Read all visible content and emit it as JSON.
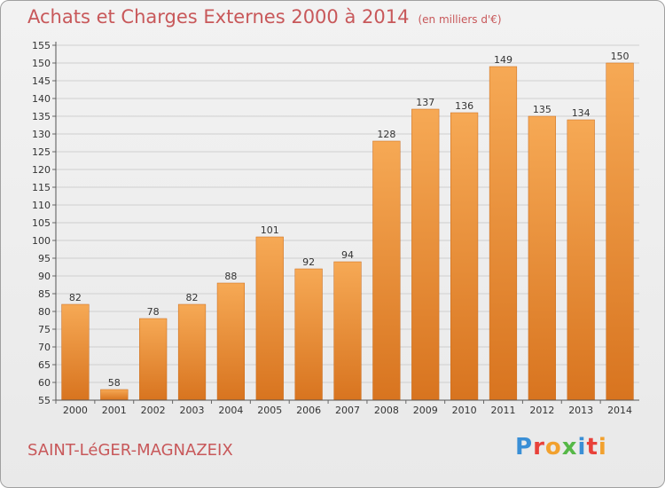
{
  "title": "Achats et Charges Externes 2000 à 2014",
  "subtitle": "(en milliers d'€)",
  "town": "SAINT-LéGER-MAGNAZEIX",
  "logo": {
    "letters": [
      "P",
      "r",
      "o",
      "x",
      "i",
      "t",
      "i"
    ],
    "colors": [
      "#3a8fd6",
      "#e8413a",
      "#f2a12e",
      "#56b847",
      "#3a8fd6",
      "#e8413a",
      "#f2a12e"
    ]
  },
  "chart_data": {
    "type": "bar",
    "categories": [
      "2000",
      "2001",
      "2002",
      "2003",
      "2004",
      "2005",
      "2006",
      "2007",
      "2008",
      "2009",
      "2010",
      "2011",
      "2012",
      "2013",
      "2014"
    ],
    "values": [
      82,
      58,
      78,
      82,
      88,
      101,
      92,
      94,
      128,
      137,
      136,
      149,
      135,
      134,
      150
    ],
    "ylim": [
      55,
      155
    ],
    "yticks": [
      55,
      60,
      65,
      70,
      75,
      80,
      85,
      90,
      95,
      100,
      105,
      110,
      115,
      120,
      125,
      130,
      135,
      140,
      145,
      150,
      155
    ],
    "grid": true,
    "bar_color": "#f0953a",
    "data_labels": true
  }
}
